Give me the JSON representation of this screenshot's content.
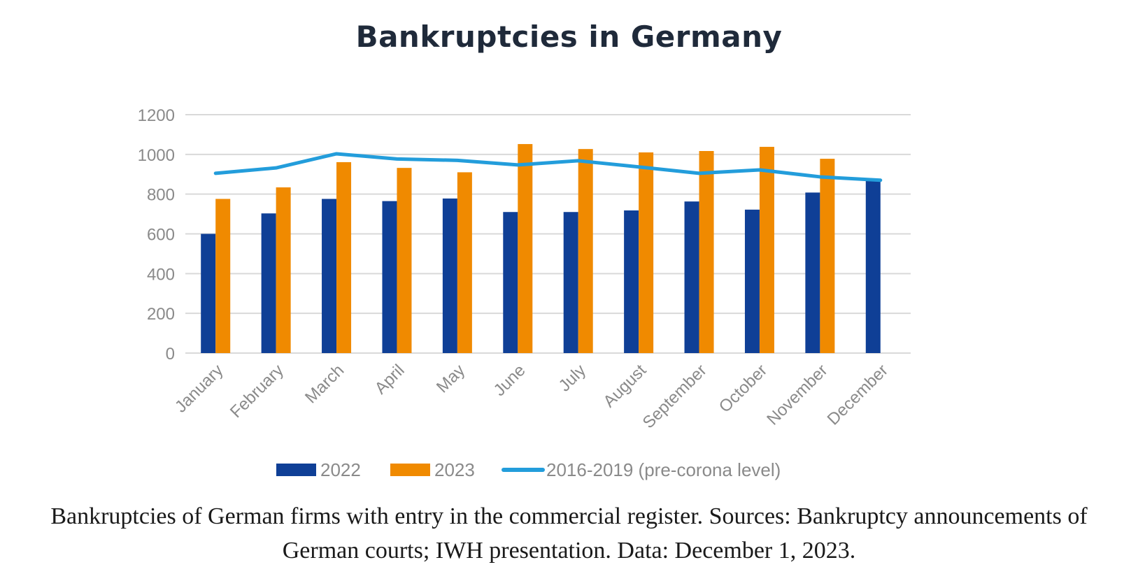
{
  "chart_data": {
    "type": "bar",
    "title": "Bankruptcies in Germany",
    "categories": [
      "January",
      "February",
      "March",
      "April",
      "May",
      "June",
      "July",
      "August",
      "September",
      "October",
      "November",
      "December"
    ],
    "series": [
      {
        "name": "2022",
        "type": "bar",
        "color": "#0f3f96",
        "values": [
          600,
          703,
          776,
          765,
          778,
          710,
          710,
          718,
          763,
          722,
          808,
          878
        ]
      },
      {
        "name": "2023",
        "type": "bar",
        "color": "#f08a00",
        "values": [
          776,
          834,
          961,
          932,
          910,
          1052,
          1027,
          1010,
          1017,
          1038,
          978,
          null
        ]
      },
      {
        "name": "2016-2019 (pre-corona level)",
        "type": "line",
        "color": "#239ddb",
        "values": [
          905,
          932,
          1003,
          977,
          970,
          947,
          968,
          937,
          905,
          922,
          887,
          870
        ]
      }
    ],
    "yticks": [
      0,
      200,
      400,
      600,
      800,
      1000,
      1200
    ],
    "ylim": [
      0,
      1200
    ],
    "grid": true,
    "legend_position": "bottom",
    "xlabel": "",
    "ylabel": ""
  },
  "caption": "Bankruptcies of German firms with entry in the commercial register. Sources: Bankruptcy announcements of German courts; IWH presentation. Data: December 1, 2023."
}
